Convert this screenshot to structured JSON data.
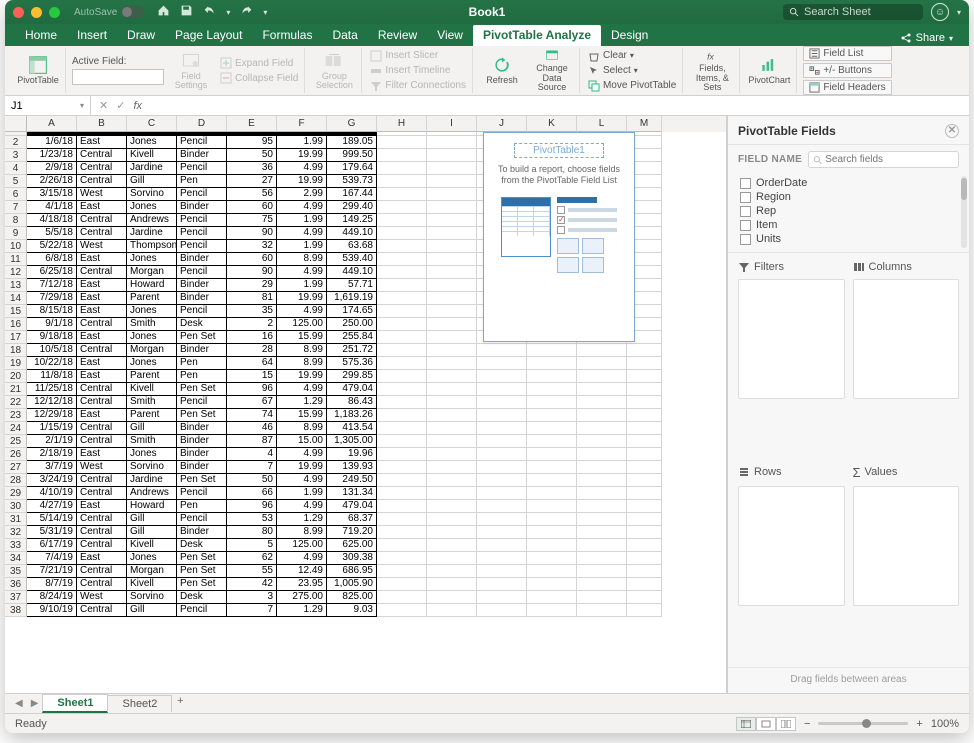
{
  "titlebar": {
    "traffic_colors": [
      "#ff5f57",
      "#febc2e",
      "#28c840"
    ],
    "autosave_label": "AutoSave",
    "title": "Book1",
    "search_placeholder": "Search Sheet"
  },
  "ribbon_tabs": [
    "Home",
    "Insert",
    "Draw",
    "Page Layout",
    "Formulas",
    "Data",
    "Review",
    "View",
    "PivotTable Analyze",
    "Design"
  ],
  "ribbon_active": "PivotTable Analyze",
  "share_label": "Share",
  "ribbon": {
    "pivottable": "PivotTable",
    "active_field_label": "Active Field:",
    "field_settings": "Field\nSettings",
    "expand_field": "Expand Field",
    "collapse_field": "Collapse Field",
    "group_selection": "Group\nSelection",
    "insert_slicer": "Insert Slicer",
    "insert_timeline": "Insert Timeline",
    "filter_connections": "Filter Connections",
    "refresh": "Refresh",
    "change_data_source": "Change\nData Source",
    "clear": "Clear",
    "select": "Select",
    "move_pivot": "Move PivotTable",
    "fields_items_sets": "Fields,\nItems, & Sets",
    "pivotchart": "PivotChart",
    "field_list": "Field List",
    "pm_buttons": "+/- Buttons",
    "field_headers": "Field Headers"
  },
  "formula_bar": {
    "name_box": "J1"
  },
  "columns": [
    "A",
    "B",
    "C",
    "D",
    "E",
    "F",
    "G",
    "H",
    "I",
    "J",
    "K",
    "L",
    "M"
  ],
  "col_classes": [
    "cw-A",
    "cw-B",
    "cw-C",
    "cw-D",
    "cw-E",
    "cw-F",
    "cw-G",
    "cw-H",
    "cw-I",
    "cw-J",
    "cw-K",
    "cw-L",
    "cw-M"
  ],
  "data_rows": [
    {
      "n": 2,
      "d": "1/6/18",
      "reg": "East",
      "rep": "Jones",
      "item": "Pencil",
      "u": "95",
      "c": "1.99",
      "t": "189.05"
    },
    {
      "n": 3,
      "d": "1/23/18",
      "reg": "Central",
      "rep": "Kivell",
      "item": "Binder",
      "u": "50",
      "c": "19.99",
      "t": "999.50"
    },
    {
      "n": 4,
      "d": "2/9/18",
      "reg": "Central",
      "rep": "Jardine",
      "item": "Pencil",
      "u": "36",
      "c": "4.99",
      "t": "179.64"
    },
    {
      "n": 5,
      "d": "2/26/18",
      "reg": "Central",
      "rep": "Gill",
      "item": "Pen",
      "u": "27",
      "c": "19.99",
      "t": "539.73"
    },
    {
      "n": 6,
      "d": "3/15/18",
      "reg": "West",
      "rep": "Sorvino",
      "item": "Pencil",
      "u": "56",
      "c": "2.99",
      "t": "167.44"
    },
    {
      "n": 7,
      "d": "4/1/18",
      "reg": "East",
      "rep": "Jones",
      "item": "Binder",
      "u": "60",
      "c": "4.99",
      "t": "299.40"
    },
    {
      "n": 8,
      "d": "4/18/18",
      "reg": "Central",
      "rep": "Andrews",
      "item": "Pencil",
      "u": "75",
      "c": "1.99",
      "t": "149.25"
    },
    {
      "n": 9,
      "d": "5/5/18",
      "reg": "Central",
      "rep": "Jardine",
      "item": "Pencil",
      "u": "90",
      "c": "4.99",
      "t": "449.10"
    },
    {
      "n": 10,
      "d": "5/22/18",
      "reg": "West",
      "rep": "Thompson",
      "item": "Pencil",
      "u": "32",
      "c": "1.99",
      "t": "63.68"
    },
    {
      "n": 11,
      "d": "6/8/18",
      "reg": "East",
      "rep": "Jones",
      "item": "Binder",
      "u": "60",
      "c": "8.99",
      "t": "539.40"
    },
    {
      "n": 12,
      "d": "6/25/18",
      "reg": "Central",
      "rep": "Morgan",
      "item": "Pencil",
      "u": "90",
      "c": "4.99",
      "t": "449.10"
    },
    {
      "n": 13,
      "d": "7/12/18",
      "reg": "East",
      "rep": "Howard",
      "item": "Binder",
      "u": "29",
      "c": "1.99",
      "t": "57.71"
    },
    {
      "n": 14,
      "d": "7/29/18",
      "reg": "East",
      "rep": "Parent",
      "item": "Binder",
      "u": "81",
      "c": "19.99",
      "t": "1,619.19"
    },
    {
      "n": 15,
      "d": "8/15/18",
      "reg": "East",
      "rep": "Jones",
      "item": "Pencil",
      "u": "35",
      "c": "4.99",
      "t": "174.65"
    },
    {
      "n": 16,
      "d": "9/1/18",
      "reg": "Central",
      "rep": "Smith",
      "item": "Desk",
      "u": "2",
      "c": "125.00",
      "t": "250.00"
    },
    {
      "n": 17,
      "d": "9/18/18",
      "reg": "East",
      "rep": "Jones",
      "item": "Pen Set",
      "u": "16",
      "c": "15.99",
      "t": "255.84"
    },
    {
      "n": 18,
      "d": "10/5/18",
      "reg": "Central",
      "rep": "Morgan",
      "item": "Binder",
      "u": "28",
      "c": "8.99",
      "t": "251.72"
    },
    {
      "n": 19,
      "d": "10/22/18",
      "reg": "East",
      "rep": "Jones",
      "item": "Pen",
      "u": "64",
      "c": "8.99",
      "t": "575.36"
    },
    {
      "n": 20,
      "d": "11/8/18",
      "reg": "East",
      "rep": "Parent",
      "item": "Pen",
      "u": "15",
      "c": "19.99",
      "t": "299.85"
    },
    {
      "n": 21,
      "d": "11/25/18",
      "reg": "Central",
      "rep": "Kivell",
      "item": "Pen Set",
      "u": "96",
      "c": "4.99",
      "t": "479.04"
    },
    {
      "n": 22,
      "d": "12/12/18",
      "reg": "Central",
      "rep": "Smith",
      "item": "Pencil",
      "u": "67",
      "c": "1.29",
      "t": "86.43"
    },
    {
      "n": 23,
      "d": "12/29/18",
      "reg": "East",
      "rep": "Parent",
      "item": "Pen Set",
      "u": "74",
      "c": "15.99",
      "t": "1,183.26"
    },
    {
      "n": 24,
      "d": "1/15/19",
      "reg": "Central",
      "rep": "Gill",
      "item": "Binder",
      "u": "46",
      "c": "8.99",
      "t": "413.54"
    },
    {
      "n": 25,
      "d": "2/1/19",
      "reg": "Central",
      "rep": "Smith",
      "item": "Binder",
      "u": "87",
      "c": "15.00",
      "t": "1,305.00"
    },
    {
      "n": 26,
      "d": "2/18/19",
      "reg": "East",
      "rep": "Jones",
      "item": "Binder",
      "u": "4",
      "c": "4.99",
      "t": "19.96"
    },
    {
      "n": 27,
      "d": "3/7/19",
      "reg": "West",
      "rep": "Sorvino",
      "item": "Binder",
      "u": "7",
      "c": "19.99",
      "t": "139.93"
    },
    {
      "n": 28,
      "d": "3/24/19",
      "reg": "Central",
      "rep": "Jardine",
      "item": "Pen Set",
      "u": "50",
      "c": "4.99",
      "t": "249.50"
    },
    {
      "n": 29,
      "d": "4/10/19",
      "reg": "Central",
      "rep": "Andrews",
      "item": "Pencil",
      "u": "66",
      "c": "1.99",
      "t": "131.34"
    },
    {
      "n": 30,
      "d": "4/27/19",
      "reg": "East",
      "rep": "Howard",
      "item": "Pen",
      "u": "96",
      "c": "4.99",
      "t": "479.04"
    },
    {
      "n": 31,
      "d": "5/14/19",
      "reg": "Central",
      "rep": "Gill",
      "item": "Pencil",
      "u": "53",
      "c": "1.29",
      "t": "68.37"
    },
    {
      "n": 32,
      "d": "5/31/19",
      "reg": "Central",
      "rep": "Gill",
      "item": "Binder",
      "u": "80",
      "c": "8.99",
      "t": "719.20"
    },
    {
      "n": 33,
      "d": "6/17/19",
      "reg": "Central",
      "rep": "Kivell",
      "item": "Desk",
      "u": "5",
      "c": "125.00",
      "t": "625.00"
    },
    {
      "n": 34,
      "d": "7/4/19",
      "reg": "East",
      "rep": "Jones",
      "item": "Pen Set",
      "u": "62",
      "c": "4.99",
      "t": "309.38"
    },
    {
      "n": 35,
      "d": "7/21/19",
      "reg": "Central",
      "rep": "Morgan",
      "item": "Pen Set",
      "u": "55",
      "c": "12.49",
      "t": "686.95"
    },
    {
      "n": 36,
      "d": "8/7/19",
      "reg": "Central",
      "rep": "Kivell",
      "item": "Pen Set",
      "u": "42",
      "c": "23.95",
      "t": "1,005.90"
    },
    {
      "n": 37,
      "d": "8/24/19",
      "reg": "West",
      "rep": "Sorvino",
      "item": "Desk",
      "u": "3",
      "c": "275.00",
      "t": "825.00"
    },
    {
      "n": 38,
      "d": "9/10/19",
      "reg": "Central",
      "rep": "Gill",
      "item": "Pencil",
      "u": "7",
      "c": "1.29",
      "t": "9.03"
    }
  ],
  "pivot_overlay": {
    "name": "PivotTable1",
    "hint": "To build a report, choose fields from the PivotTable Field List"
  },
  "pt_panel": {
    "title": "PivotTable Fields",
    "field_name_label": "FIELD NAME",
    "search_placeholder": "Search fields",
    "fields": [
      "OrderDate",
      "Region",
      "Rep",
      "Item",
      "Units"
    ],
    "filters": "Filters",
    "columns": "Columns",
    "rows": "Rows",
    "values": "Values",
    "drag_hint": "Drag fields between areas"
  },
  "sheet_tabs": {
    "tabs": [
      "Sheet1",
      "Sheet2"
    ],
    "active": "Sheet1"
  },
  "status": {
    "ready": "Ready",
    "zoom": "100%"
  },
  "colors": {
    "excel_green": "#217346",
    "accent_blue": "#4e8fc4",
    "panel_bg": "#f7f7f7",
    "grid_border": "#d4d4d4"
  }
}
